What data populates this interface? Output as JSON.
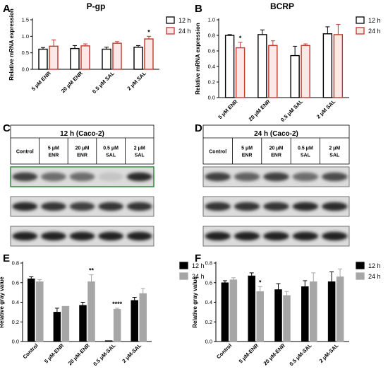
{
  "panels": {
    "A": "A",
    "B": "B",
    "C": "C",
    "D": "D",
    "E": "E",
    "F": "F"
  },
  "chart_data": [
    {
      "id": "A",
      "type": "bar",
      "title": "P-gp",
      "ylabel": "Relative mRNA expression",
      "ylim": [
        0,
        1.5
      ],
      "yticks": [
        "0.0",
        "0.5",
        "1.0",
        "1.5"
      ],
      "categories": [
        "5 μM ENR",
        "20 μM ENR",
        "0.5 μM SAL",
        "2 μM SAL"
      ],
      "series": [
        {
          "name": "12 h",
          "color": "#000000",
          "fill": "#ffffff",
          "values": [
            0.61,
            0.63,
            0.61,
            0.67
          ],
          "errors": [
            0.05,
            0.09,
            0.06,
            0.05
          ]
        },
        {
          "name": "24 h",
          "color": "#c0392b",
          "fill": "#fde8e8",
          "values": [
            0.7,
            0.71,
            0.79,
            0.92
          ],
          "errors": [
            0.19,
            0.06,
            0.05,
            0.08
          ]
        }
      ],
      "annotations": [
        {
          "category": 3,
          "series": 1,
          "text": "*"
        }
      ],
      "legend": "top-right"
    },
    {
      "id": "B",
      "type": "bar",
      "title": "BCRP",
      "ylabel": "Relative mRNA expression",
      "ylim": [
        0,
        1.0
      ],
      "yticks": [
        "0.0",
        "0.2",
        "0.4",
        "0.6",
        "0.8",
        "1.0"
      ],
      "categories": [
        "5 μM ENR",
        "20 μM ENR",
        "0.5 μM SAL",
        "2 μM SAL"
      ],
      "series": [
        {
          "name": "12 h",
          "color": "#000000",
          "fill": "#ffffff",
          "values": [
            0.8,
            0.81,
            0.54,
            0.82
          ],
          "errors": [
            0.01,
            0.06,
            0.12,
            0.09
          ]
        },
        {
          "name": "24 h",
          "color": "#c0392b",
          "fill": "#fde8e8",
          "values": [
            0.64,
            0.67,
            0.67,
            0.81
          ],
          "errors": [
            0.07,
            0.06,
            0.02,
            0.13
          ]
        }
      ],
      "annotations": [
        {
          "category": 0,
          "series": 1,
          "text": "*"
        }
      ],
      "legend": "top-right"
    },
    {
      "id": "E",
      "type": "bar",
      "ylabel": "Relative gray value",
      "ylim": [
        0,
        0.8
      ],
      "yticks": [
        "0.0",
        "0.2",
        "0.4",
        "0.6",
        "0.8"
      ],
      "categories": [
        "Control",
        "5 μM-ENR",
        "20 μM-ENR",
        "0.5 μM-SAL",
        "2 μM-SAL"
      ],
      "series": [
        {
          "name": "12 h",
          "color": "#000000",
          "fill": "#000000",
          "values": [
            0.64,
            0.3,
            0.37,
            0.01,
            0.42
          ],
          "errors": [
            0.02,
            0.04,
            0.03,
            0.0,
            0.03
          ]
        },
        {
          "name": "24 h",
          "color": "#a6a6a6",
          "fill": "#a6a6a6",
          "values": [
            0.61,
            0.36,
            0.61,
            0.33,
            0.49
          ],
          "errors": [
            0.02,
            0.0,
            0.07,
            0.01,
            0.05
          ]
        }
      ],
      "annotations": [
        {
          "category": 2,
          "series": 1,
          "text": "**"
        },
        {
          "category": 3,
          "series": 1,
          "text": "****"
        }
      ],
      "legend": "top-right"
    },
    {
      "id": "F",
      "type": "bar",
      "ylabel": "Relative gray value",
      "ylim": [
        0,
        0.8
      ],
      "yticks": [
        "0.0",
        "0.2",
        "0.4",
        "0.6",
        "0.8"
      ],
      "categories": [
        "Control",
        "5 μM-ENR",
        "20 μM-ENR",
        "0.5 μM-SAL",
        "2 μM-SAL"
      ],
      "series": [
        {
          "name": "12 h",
          "color": "#000000",
          "fill": "#000000",
          "values": [
            0.6,
            0.67,
            0.53,
            0.56,
            0.61
          ],
          "errors": [
            0.02,
            0.03,
            0.06,
            0.06,
            0.1
          ]
        },
        {
          "name": "24 h",
          "color": "#a6a6a6",
          "fill": "#a6a6a6",
          "values": [
            0.63,
            0.51,
            0.47,
            0.61,
            0.66
          ],
          "errors": [
            0.02,
            0.05,
            0.04,
            0.09,
            0.08
          ]
        }
      ],
      "annotations": [
        {
          "category": 1,
          "series": 1,
          "text": "*"
        }
      ],
      "legend": "top-right"
    }
  ],
  "blots": [
    {
      "id": "C",
      "title": "12 h (Caco-2)",
      "lanes": [
        [
          "Control"
        ],
        [
          "5 μM",
          "ENR"
        ],
        [
          "20 μM",
          "ENR"
        ],
        [
          "0.5 μM",
          "SAL"
        ],
        [
          "2 μM",
          "SAL"
        ]
      ],
      "bands": [
        [
          0.75,
          0.55,
          0.55,
          0.15,
          0.85
        ],
        [
          0.85,
          0.8,
          0.75,
          0.8,
          0.8
        ],
        [
          0.9,
          0.9,
          0.9,
          0.9,
          0.9
        ]
      ]
    },
    {
      "id": "D",
      "title": "24 h (Caco-2)",
      "lanes": [
        [
          "Control"
        ],
        [
          "5 μM",
          "ENR"
        ],
        [
          "20 μM",
          "ENR"
        ],
        [
          "0.5 μM",
          "SAL"
        ],
        [
          "2 μM",
          "SAL"
        ]
      ],
      "bands": [
        [
          0.75,
          0.6,
          0.75,
          0.55,
          0.7
        ],
        [
          0.8,
          0.8,
          0.8,
          0.85,
          0.85
        ],
        [
          0.9,
          0.9,
          0.9,
          0.9,
          0.9
        ]
      ]
    }
  ]
}
